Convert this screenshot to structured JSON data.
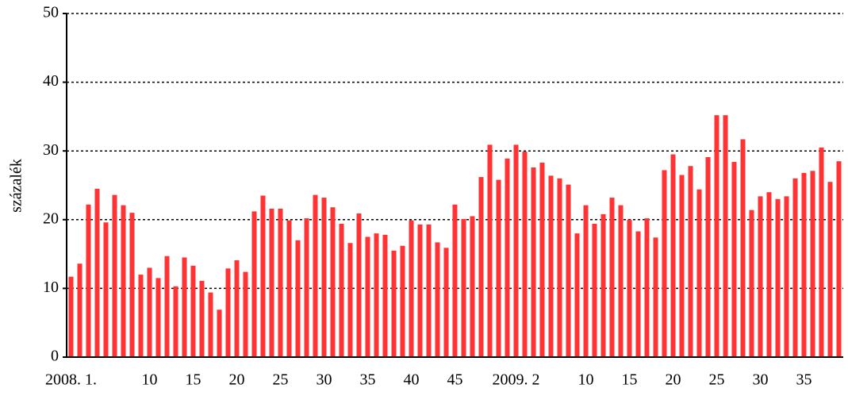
{
  "chart_data": {
    "type": "bar",
    "y_label": "százalék",
    "categories": [
      "2008. 1.",
      null,
      null,
      null,
      null,
      null,
      null,
      null,
      null,
      "10",
      null,
      null,
      null,
      null,
      "15",
      null,
      null,
      null,
      null,
      "20",
      null,
      null,
      null,
      null,
      "25",
      null,
      null,
      null,
      null,
      "30",
      null,
      null,
      null,
      null,
      "35",
      null,
      null,
      null,
      null,
      "40",
      null,
      null,
      null,
      null,
      "45",
      null,
      null,
      null,
      null,
      null,
      null,
      "2009. 2",
      null,
      null,
      null,
      null,
      null,
      null,
      null,
      "10",
      null,
      null,
      null,
      null,
      "15",
      null,
      null,
      null,
      null,
      "20",
      null,
      null,
      null,
      null,
      "25",
      null,
      null,
      null,
      null,
      "30",
      null,
      null,
      null,
      null,
      "35",
      null,
      null,
      null,
      null
    ],
    "values": [
      11.7,
      13.6,
      22.2,
      24.5,
      19.6,
      23.6,
      22.1,
      21.0,
      12.0,
      13.0,
      11.5,
      14.7,
      10.3,
      14.5,
      13.3,
      11.1,
      9.4,
      6.9,
      12.9,
      14.1,
      12.4,
      21.2,
      23.5,
      21.6,
      21.6,
      19.9,
      17.0,
      20.2,
      23.6,
      23.2,
      21.8,
      19.4,
      16.6,
      20.9,
      17.5,
      18.0,
      17.8,
      15.5,
      16.2,
      19.9,
      19.3,
      19.3,
      16.7,
      15.9,
      22.2,
      20.1,
      20.5,
      26.2,
      30.9,
      25.8,
      28.9,
      30.9,
      29.9,
      27.6,
      28.3,
      26.4,
      26.0,
      25.1,
      18.0,
      22.1,
      19.4,
      20.8,
      23.2,
      22.1,
      20.0,
      18.3,
      20.2,
      17.4,
      27.2,
      29.5,
      26.5,
      27.8,
      24.4,
      29.1,
      35.2,
      35.2,
      28.4,
      31.7,
      21.4,
      23.4,
      24.0,
      23.0,
      23.4,
      26.0,
      26.8,
      27.1,
      30.5,
      25.5,
      28.5
    ],
    "color": "#ff3333",
    "ylim": [
      0,
      50
    ],
    "yticks": [
      0,
      10,
      20,
      30,
      40,
      50
    ],
    "grid": true
  }
}
